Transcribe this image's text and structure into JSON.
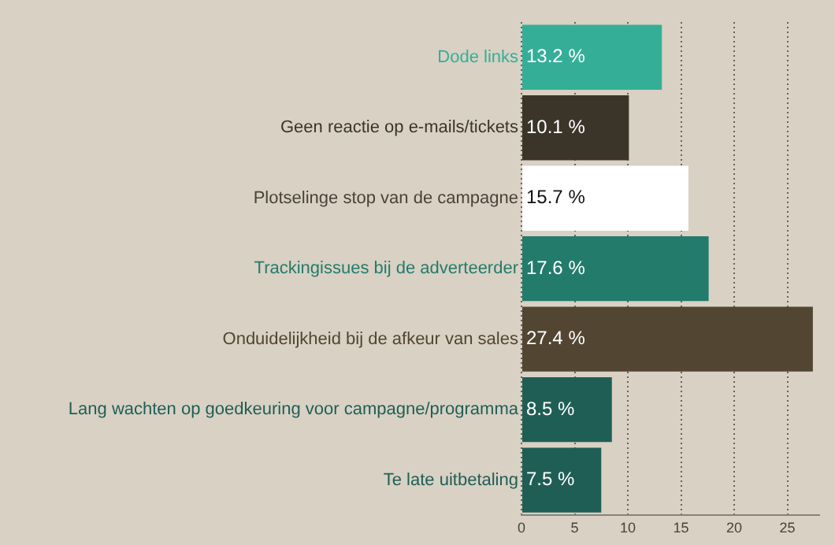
{
  "chart_data": {
    "type": "bar",
    "orientation": "horizontal",
    "categories": [
      "Dode links",
      "Geen reactie op e-mails/tickets",
      "Plotselinge stop van de campagne",
      "Trackingissues bij de adverteerder",
      "Onduidelijkheid bij de afkeur van sales",
      "Lang wachten op goedkeuring voor campagne/programma",
      "Te late uitbetaling"
    ],
    "values": [
      13.2,
      10.1,
      15.7,
      17.6,
      27.4,
      8.5,
      7.5
    ],
    "value_labels": [
      "13.2 %",
      "10.1 %",
      "15.7 %",
      "17.6 %",
      "27.4 %",
      "8.5 %",
      "7.5 %"
    ],
    "colors": [
      "#35ae98",
      "#3b3429",
      "#ffffff",
      "#237b6c",
      "#524532",
      "#1f5e55",
      "#1f5e55"
    ],
    "xlim": [
      0,
      28
    ],
    "xticks": [
      0,
      5,
      10,
      15,
      20,
      25
    ],
    "grid": "x",
    "legend": false
  }
}
